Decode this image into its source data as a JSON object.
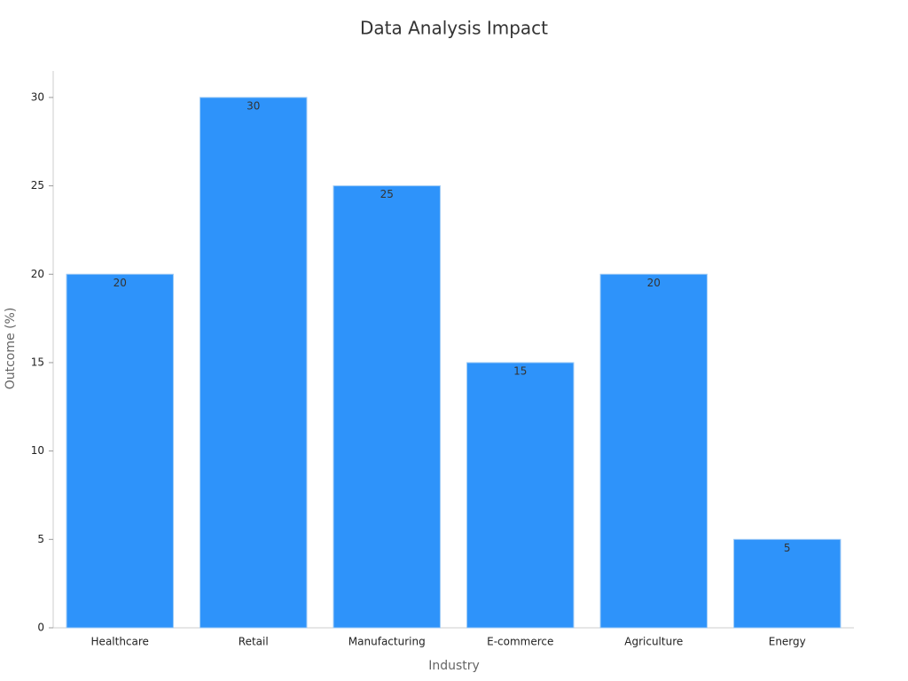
{
  "chart_data": {
    "type": "bar",
    "title": "Data Analysis Impact",
    "x_label": "Industry",
    "y_label": "Outcome (%)",
    "categories": [
      "Healthcare",
      "Retail",
      "Manufacturing",
      "E-commerce",
      "Agriculture",
      "Energy"
    ],
    "values": [
      20,
      30,
      25,
      15,
      20,
      5
    ],
    "color": "#2e93fa",
    "ylim": [
      0,
      31.5
    ],
    "yticks": [
      0,
      5,
      10,
      15,
      20,
      25,
      30
    ],
    "grid": false
  }
}
